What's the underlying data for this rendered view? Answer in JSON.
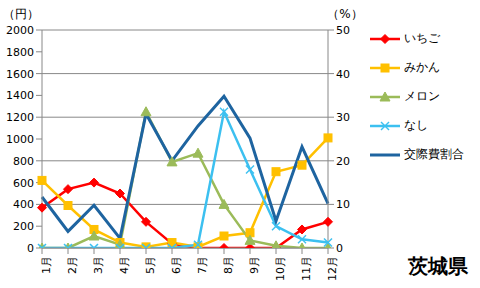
{
  "chart_data": {
    "type": "line",
    "title": "茨城県",
    "y_label": "（円）",
    "y2_label": "（%）",
    "categories": [
      "1月",
      "2月",
      "3月",
      "4月",
      "5月",
      "6月",
      "7月",
      "8月",
      "9月",
      "10月",
      "11月",
      "12月"
    ],
    "ylim": [
      0,
      2000
    ],
    "yticks": [
      0,
      200,
      400,
      600,
      800,
      1000,
      1200,
      1400,
      1600,
      1800,
      2000
    ],
    "y2lim": [
      0,
      50
    ],
    "y2ticks": [
      0,
      10,
      20,
      30,
      40,
      50
    ],
    "grid": true,
    "legend": "right",
    "series": [
      {
        "name": "いちご",
        "color": "#ff0000",
        "marker": "diamond",
        "values": [
          370,
          540,
          600,
          500,
          240,
          40,
          0,
          0,
          0,
          0,
          170,
          240
        ]
      },
      {
        "name": "みかん",
        "color": "#ffc000",
        "marker": "square",
        "values": [
          620,
          390,
          170,
          50,
          10,
          50,
          10,
          110,
          140,
          700,
          760,
          1010
        ]
      },
      {
        "name": "メロン",
        "color": "#9bbb59",
        "marker": "triangle",
        "values": [
          0,
          0,
          110,
          30,
          1250,
          790,
          870,
          400,
          70,
          20,
          0,
          0
        ]
      },
      {
        "name": "なし",
        "color": "#3cc0f0",
        "marker": "x",
        "values": [
          0,
          0,
          0,
          0,
          0,
          0,
          30,
          1250,
          720,
          200,
          80,
          50
        ]
      },
      {
        "name": "交際費割合",
        "color": "#1e64a0",
        "marker": "none",
        "axis": "y2",
        "values": [
          11.7,
          3.8,
          9.8,
          2.2,
          30.8,
          20,
          28,
          34.8,
          25.2,
          6.2,
          23.2,
          10.2
        ]
      }
    ]
  }
}
